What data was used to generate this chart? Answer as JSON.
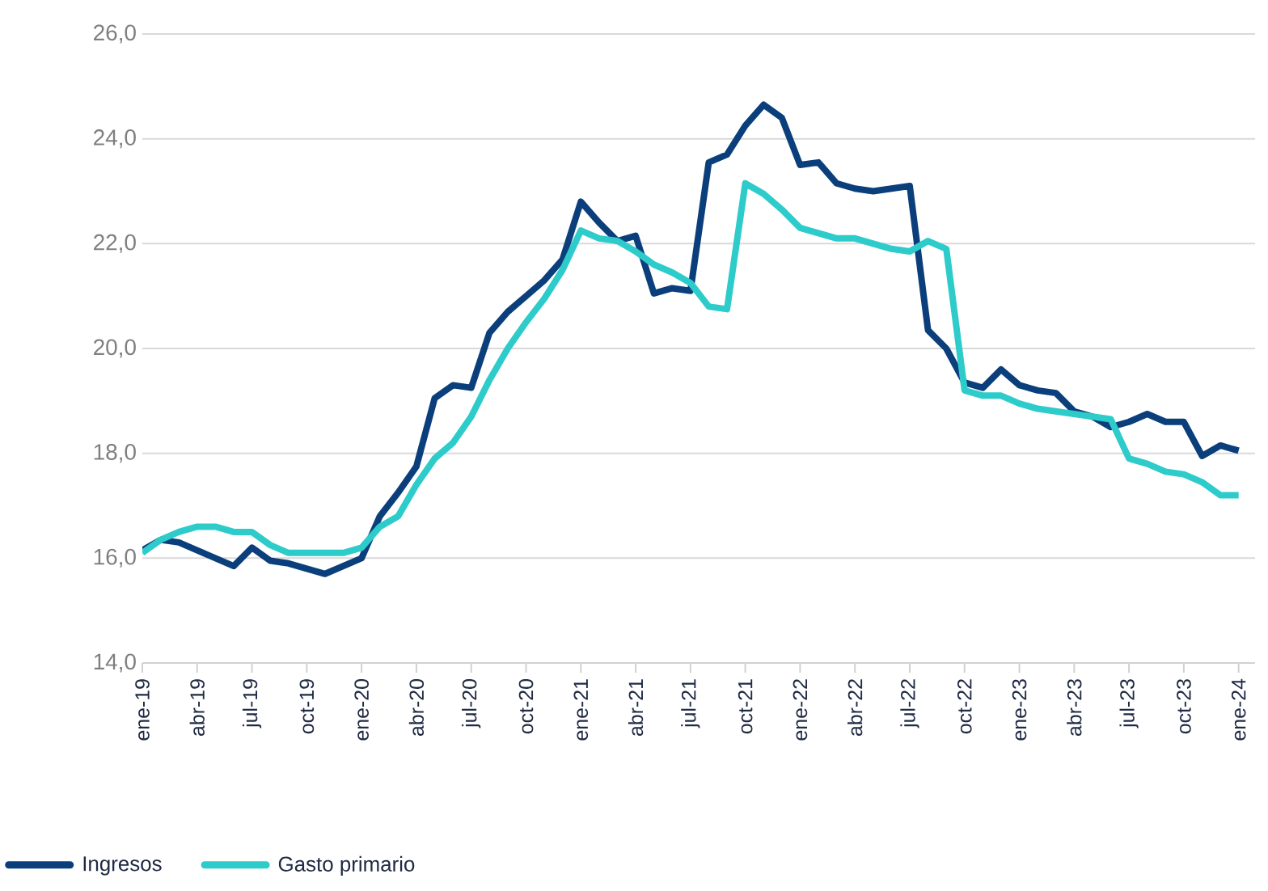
{
  "chart_data": {
    "type": "line",
    "categories": [
      "ene-19",
      null,
      null,
      "abr-19",
      null,
      null,
      "jul-19",
      null,
      null,
      "oct-19",
      null,
      null,
      "ene-20",
      null,
      null,
      "abr-20",
      null,
      null,
      "jul-20",
      null,
      null,
      "oct-20",
      null,
      null,
      "ene-21",
      null,
      null,
      "abr-21",
      null,
      null,
      "jul-21",
      null,
      null,
      "oct-21",
      null,
      null,
      "ene-22",
      null,
      null,
      "abr-22",
      null,
      null,
      "jul-22",
      null,
      null,
      "oct-22",
      null,
      null,
      "ene-23",
      null,
      null,
      "abr-23",
      null,
      null,
      "jul-23",
      null,
      null,
      "oct-23",
      null,
      null,
      "ene-24"
    ],
    "series": [
      {
        "name": "Ingresos",
        "color": "#0b3f7c",
        "values": [
          16.15,
          16.35,
          16.3,
          16.15,
          16.0,
          15.85,
          16.2,
          15.95,
          15.9,
          15.8,
          15.7,
          15.85,
          16.0,
          16.8,
          17.25,
          17.75,
          19.05,
          19.3,
          19.25,
          20.3,
          20.7,
          21.0,
          21.3,
          21.7,
          22.8,
          22.4,
          22.05,
          22.15,
          21.05,
          21.15,
          21.1,
          23.55,
          23.7,
          24.25,
          24.65,
          24.4,
          23.5,
          23.55,
          23.15,
          23.05,
          23.0,
          23.05,
          23.1,
          20.35,
          20.0,
          19.35,
          19.25,
          19.6,
          19.3,
          19.2,
          19.15,
          18.8,
          18.7,
          18.5,
          18.6,
          18.75,
          18.6,
          18.6,
          17.95,
          18.15,
          18.05
        ]
      },
      {
        "name": "Gasto primario",
        "color": "#2ecbcb",
        "values": [
          16.1,
          16.35,
          16.5,
          16.6,
          16.6,
          16.5,
          16.5,
          16.25,
          16.1,
          16.1,
          16.1,
          16.1,
          16.2,
          16.6,
          16.8,
          17.4,
          17.9,
          18.2,
          18.7,
          19.4,
          20.0,
          20.5,
          20.95,
          21.5,
          22.25,
          22.1,
          22.05,
          21.85,
          21.6,
          21.45,
          21.25,
          20.8,
          20.75,
          23.15,
          22.95,
          22.65,
          22.3,
          22.2,
          22.1,
          22.1,
          22.0,
          21.9,
          21.85,
          22.05,
          21.9,
          19.2,
          19.1,
          19.1,
          18.95,
          18.85,
          18.8,
          18.75,
          18.7,
          18.65,
          17.9,
          17.8,
          17.65,
          17.6,
          17.45,
          17.2,
          17.2
        ]
      }
    ],
    "ylim": [
      14,
      26
    ],
    "yticks": [
      {
        "value": 14,
        "label": "14,0"
      },
      {
        "value": 16,
        "label": "16,0"
      },
      {
        "value": 18,
        "label": "18,0"
      },
      {
        "value": 20,
        "label": "20,0"
      },
      {
        "value": 22,
        "label": "22,0"
      },
      {
        "value": 24,
        "label": "24,0"
      },
      {
        "value": 26,
        "label": "26,0"
      }
    ],
    "grid": "y",
    "legend": "bottom",
    "line_style": "solid"
  }
}
